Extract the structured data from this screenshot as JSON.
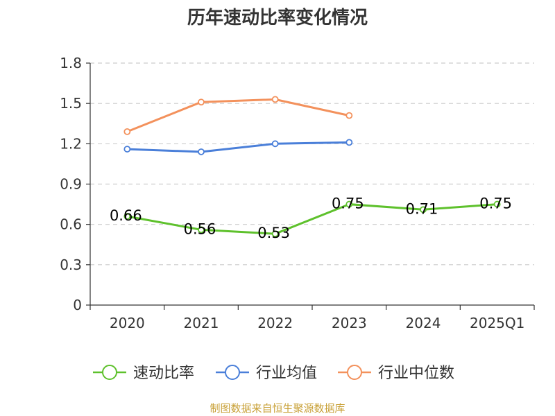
{
  "chart_data": {
    "type": "line",
    "title": "历年速动比率变化情况",
    "categories": [
      "2020",
      "2021",
      "2022",
      "2023",
      "2024",
      "2025Q1"
    ],
    "ylim": [
      0,
      1.8
    ],
    "yticks": [
      "0",
      "0.3",
      "0.6",
      "0.9",
      "1.2",
      "1.5",
      "1.8"
    ],
    "grid": true,
    "legend_position": "bottom",
    "series": [
      {
        "name": "速动比率",
        "color": "#5ec12c",
        "values": [
          0.66,
          0.56,
          0.53,
          0.75,
          0.71,
          0.75
        ],
        "labels": [
          "0.66",
          "0.56",
          "0.53",
          "0.75",
          "0.71",
          "0.75"
        ]
      },
      {
        "name": "行业均值",
        "color": "#4a7fd9",
        "values": [
          1.16,
          1.14,
          1.2,
          1.21,
          null,
          null
        ]
      },
      {
        "name": "行业中位数",
        "color": "#f3915c",
        "values": [
          1.29,
          1.51,
          1.53,
          1.41,
          null,
          null
        ]
      }
    ]
  },
  "footer": {
    "source": "制图数据来自恒生聚源数据库"
  }
}
